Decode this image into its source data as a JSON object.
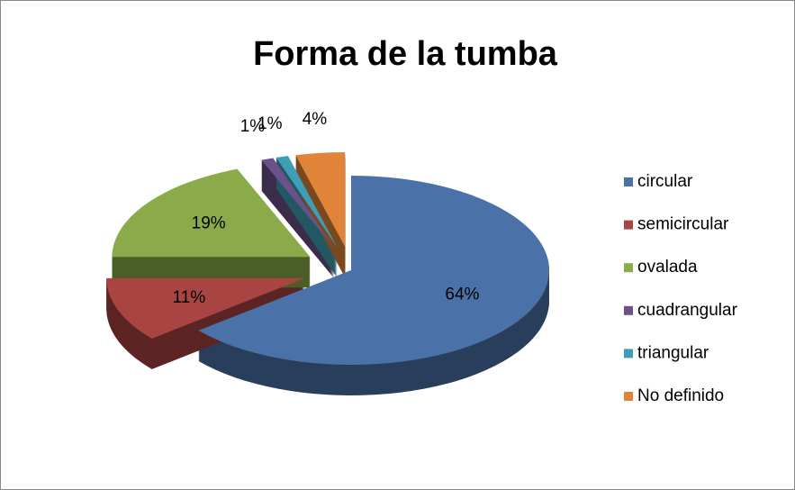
{
  "chart_data": {
    "type": "pie3d",
    "title": "Forma de la tumba",
    "categories": [
      "circular",
      "semicircular",
      "ovalada",
      "cuadrangular",
      "triangular",
      "No definido"
    ],
    "values": [
      64,
      11,
      19,
      1,
      1,
      4
    ],
    "value_labels": [
      "64%",
      "11%",
      "19%",
      "1%",
      "1%",
      "4%"
    ],
    "colors": [
      "#4a72a8",
      "#a84442",
      "#8bab4b",
      "#6b5089",
      "#3d9eb5",
      "#e0843a"
    ],
    "legend": "right"
  }
}
